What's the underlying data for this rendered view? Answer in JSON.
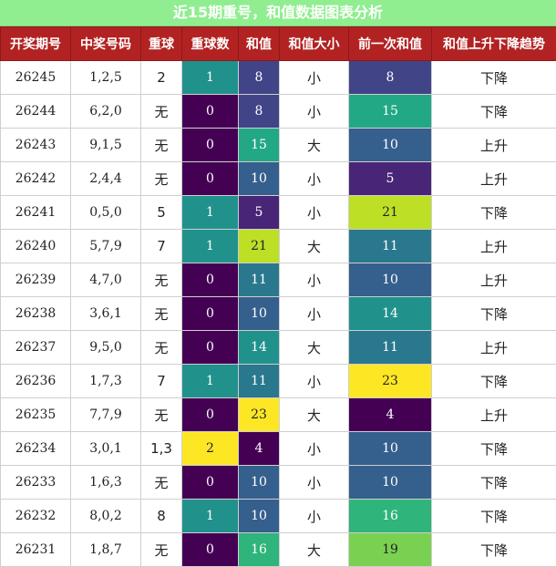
{
  "title": "近15期重号，和值数据图表分析",
  "columns": [
    "开奖期号",
    "中奖号码",
    "重球",
    "重球数",
    "和值",
    "和值大小",
    "前一次和值",
    "和值上升下降趋势"
  ],
  "rows": [
    {
      "issue": "26245",
      "numbers": "1,2,5",
      "repeat": "2",
      "repeat_count": "1",
      "sum": "8",
      "size": "小",
      "prev_sum": "8",
      "trend": "下降"
    },
    {
      "issue": "26244",
      "numbers": "6,2,0",
      "repeat": "无",
      "repeat_count": "0",
      "sum": "8",
      "size": "小",
      "prev_sum": "15",
      "trend": "下降"
    },
    {
      "issue": "26243",
      "numbers": "9,1,5",
      "repeat": "无",
      "repeat_count": "0",
      "sum": "15",
      "size": "大",
      "prev_sum": "10",
      "trend": "上升"
    },
    {
      "issue": "26242",
      "numbers": "2,4,4",
      "repeat": "无",
      "repeat_count": "0",
      "sum": "10",
      "size": "小",
      "prev_sum": "5",
      "trend": "上升"
    },
    {
      "issue": "26241",
      "numbers": "0,5,0",
      "repeat": "5",
      "repeat_count": "1",
      "sum": "5",
      "size": "小",
      "prev_sum": "21",
      "trend": "下降"
    },
    {
      "issue": "26240",
      "numbers": "5,7,9",
      "repeat": "7",
      "repeat_count": "1",
      "sum": "21",
      "size": "大",
      "prev_sum": "11",
      "trend": "上升"
    },
    {
      "issue": "26239",
      "numbers": "4,7,0",
      "repeat": "无",
      "repeat_count": "0",
      "sum": "11",
      "size": "小",
      "prev_sum": "10",
      "trend": "上升"
    },
    {
      "issue": "26238",
      "numbers": "3,6,1",
      "repeat": "无",
      "repeat_count": "0",
      "sum": "10",
      "size": "小",
      "prev_sum": "14",
      "trend": "下降"
    },
    {
      "issue": "26237",
      "numbers": "9,5,0",
      "repeat": "无",
      "repeat_count": "0",
      "sum": "14",
      "size": "大",
      "prev_sum": "11",
      "trend": "上升"
    },
    {
      "issue": "26236",
      "numbers": "1,7,3",
      "repeat": "7",
      "repeat_count": "1",
      "sum": "11",
      "size": "小",
      "prev_sum": "23",
      "trend": "下降"
    },
    {
      "issue": "26235",
      "numbers": "7,7,9",
      "repeat": "无",
      "repeat_count": "0",
      "sum": "23",
      "size": "大",
      "prev_sum": "4",
      "trend": "上升"
    },
    {
      "issue": "26234",
      "numbers": "3,0,1",
      "repeat": "1,3",
      "repeat_count": "2",
      "sum": "4",
      "size": "小",
      "prev_sum": "10",
      "trend": "下降"
    },
    {
      "issue": "26233",
      "numbers": "1,6,3",
      "repeat": "无",
      "repeat_count": "0",
      "sum": "10",
      "size": "小",
      "prev_sum": "10",
      "trend": "下降"
    },
    {
      "issue": "26232",
      "numbers": "8,0,2",
      "repeat": "8",
      "repeat_count": "1",
      "sum": "10",
      "size": "小",
      "prev_sum": "16",
      "trend": "下降"
    },
    {
      "issue": "26231",
      "numbers": "1,8,7",
      "repeat": "无",
      "repeat_count": "0",
      "sum": "16",
      "size": "大",
      "prev_sum": "19",
      "trend": "下降"
    }
  ],
  "colors": {
    "title_bg": "#90ee90",
    "header_bg": "#b22222",
    "repeat_count": {
      "0": "#440154",
      "1": "#21918c",
      "2": "#fde725"
    },
    "sum_scale": {
      "4": "#440154",
      "5": "#482576",
      "8": "#414487",
      "10": "#355f8d",
      "11": "#2a788e",
      "14": "#21918c",
      "15": "#22a884",
      "16": "#2fb47c",
      "19": "#7ad151",
      "21": "#bddf26",
      "23": "#fde725"
    }
  }
}
